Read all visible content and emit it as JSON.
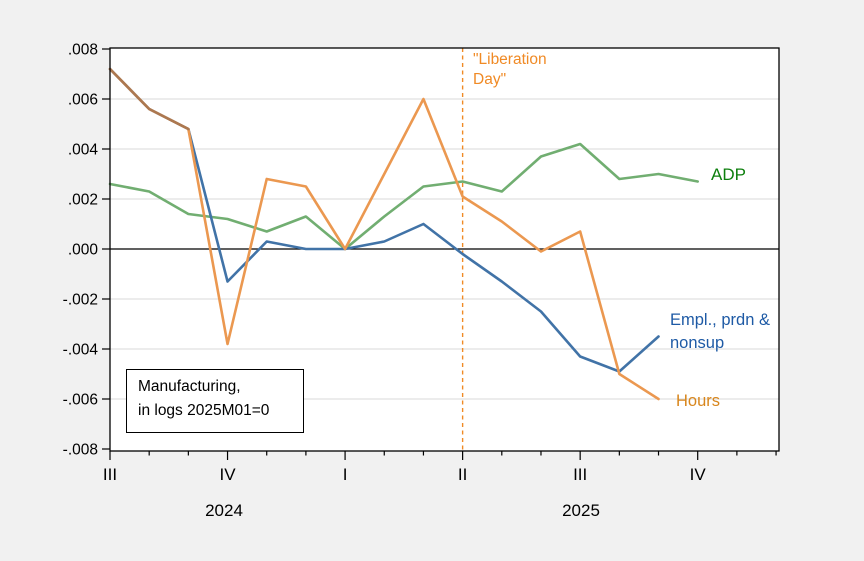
{
  "chart_data": {
    "type": "line",
    "title_lines": [
      "Manufacturing,",
      "in logs 2025M01=0"
    ],
    "months": [
      "2024M07",
      "2024M08",
      "2024M09",
      "2024M10",
      "2024M11",
      "2024M12",
      "2025M01",
      "2025M02",
      "2025M03",
      "2025M04",
      "2025M05",
      "2025M06",
      "2025M07",
      "2025M08",
      "2025M09",
      "2025M10"
    ],
    "axis_extra_months": 2,
    "series": [
      {
        "name": "ADP",
        "color": "#71AE71",
        "label_color": "#0D7F0D",
        "values": [
          0.0026,
          0.0023,
          0.0014,
          0.0012,
          0.0007,
          0.0013,
          0.0,
          0.0013,
          0.0025,
          0.0027,
          0.0023,
          0.0037,
          0.0042,
          0.0028,
          0.003,
          0.0027
        ]
      },
      {
        "name": "Empl., prdn & nonsup",
        "color": "#4173A7",
        "label_color": "#1E5AA5",
        "values": [
          0.0072,
          0.0056,
          0.0048,
          -0.0013,
          0.0003,
          0.0,
          0.0,
          0.0003,
          0.001,
          -0.0002,
          -0.0013,
          -0.0025,
          -0.0043,
          -0.0049,
          -0.0035,
          null
        ]
      },
      {
        "name": "Hours",
        "color": "#EB9850",
        "label_color": "#D8861C",
        "values": [
          0.0072,
          0.0056,
          0.0048,
          -0.0038,
          0.0028,
          0.0025,
          0.0,
          0.003,
          0.006,
          0.0021,
          0.0011,
          -0.0001,
          0.0007,
          -0.005,
          -0.006,
          null
        ]
      }
    ],
    "overlap_segment": {
      "note": "Hours and Empl. lines coincide Jul-Sep 2024 and render as brown",
      "color": "#AC7850",
      "month_start": 0,
      "month_end": 2
    },
    "ylim": [
      -0.008,
      0.008
    ],
    "ytick_step": 0.002,
    "ytick_labels": [
      ".008",
      ".006",
      ".004",
      ".002",
      ".000",
      "-.002",
      "-.004",
      "-.006",
      "-.008"
    ],
    "xticks": [
      {
        "label": "III",
        "month": 0
      },
      {
        "label": "IV",
        "month": 3
      },
      {
        "label": "I",
        "month": 6
      },
      {
        "label": "II",
        "month": 9
      },
      {
        "label": "III",
        "month": 12
      },
      {
        "label": "IV",
        "month": 15
      }
    ],
    "year_labels": [
      {
        "text": "2024"
      },
      {
        "text": "2025"
      }
    ],
    "annotation_line": {
      "month": 9,
      "color": "#F08A25",
      "label_lines": [
        "\"Liberation",
        "Day\""
      ]
    },
    "grid": "horizontal",
    "zero_line": true,
    "legend_position": "inline-right"
  },
  "colors": {
    "background": "#F1F1F1",
    "plot_background": "#FFFFFF",
    "gridline": "#D9D9D9",
    "axis": "#000000"
  }
}
